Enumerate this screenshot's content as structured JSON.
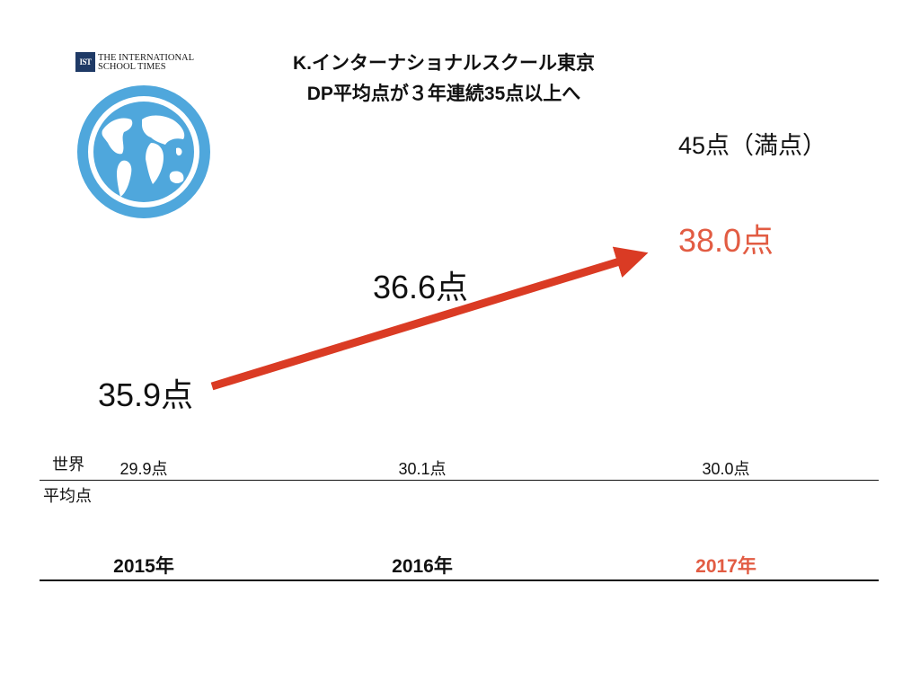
{
  "logo": {
    "badge_text": "IST",
    "line1": "THE INTERNATIONAL",
    "line2": "SCHOOL TIMES",
    "icon": "globe-icon",
    "globe_color": "#4fa7dc"
  },
  "title": {
    "line1": "K.インターナショナルスクール東京",
    "line2": "DP平均点が３年連続35点以上へ"
  },
  "full_score_label": "45点（満点）",
  "world_label": {
    "line1": "世界",
    "line2": "平均点"
  },
  "chart_data": {
    "type": "line",
    "categories": [
      "2015年",
      "2016年",
      "2017年"
    ],
    "series": [
      {
        "values": [
          35.9,
          36.6,
          38.0
        ],
        "labels": [
          "35.9点",
          "36.6点",
          "38.0点"
        ],
        "color": "#da3b24"
      }
    ],
    "world_average": {
      "values": [
        29.9,
        30.1,
        30.0
      ],
      "labels": [
        "29.9点",
        "30.1点",
        "30.0点"
      ]
    },
    "max_score": 45,
    "highlight_color": "#e25c43"
  }
}
